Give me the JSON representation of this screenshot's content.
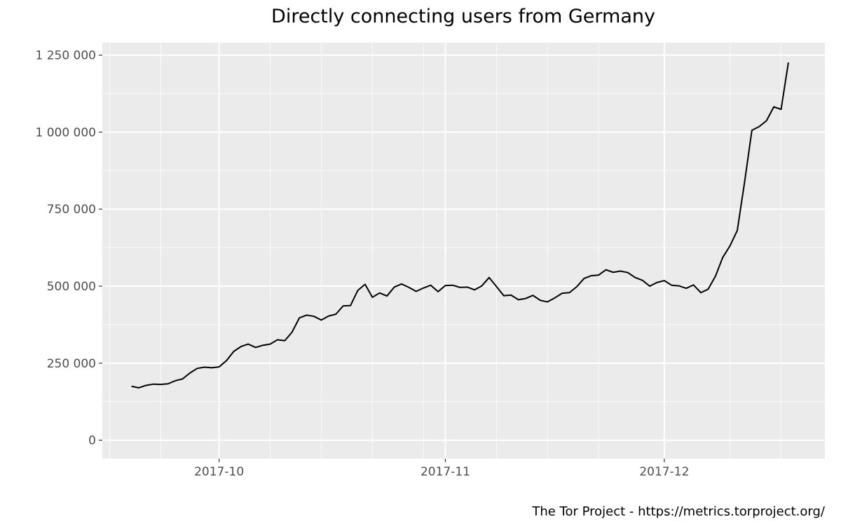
{
  "chart_data": {
    "type": "line",
    "title": "Directly connecting users from Germany",
    "caption": "The Tor Project - https://metrics.torproject.org/",
    "xlabel": "",
    "ylabel": "",
    "x_range": [
      "2017-09-15",
      "2017-12-23"
    ],
    "ylim": [
      -60000,
      1290000
    ],
    "y_ticks": [
      {
        "value": 0,
        "label": "0"
      },
      {
        "value": 250000,
        "label": "250 000"
      },
      {
        "value": 500000,
        "label": "500 000"
      },
      {
        "value": 750000,
        "label": "750 000"
      },
      {
        "value": 1000000,
        "label": "1 000 000"
      },
      {
        "value": 1250000,
        "label": "1 250 000"
      }
    ],
    "y_minor_ticks": [
      125000,
      375000,
      625000,
      875000,
      1125000
    ],
    "x_ticks": [
      {
        "value": "2017-10-01",
        "label": "2017-10"
      },
      {
        "value": "2017-11-01",
        "label": "2017-11"
      },
      {
        "value": "2017-12-01",
        "label": "2017-12"
      }
    ],
    "x_minor_ticks": [
      "2017-09-16",
      "2017-09-23",
      "2017-10-08",
      "2017-10-15",
      "2017-10-22",
      "2017-10-29",
      "2017-11-08",
      "2017-11-15",
      "2017-11-22",
      "2017-12-10",
      "2017-12-17"
    ],
    "grid": true,
    "series": [
      {
        "color": "#000000",
        "points": [
          [
            "2017-09-19",
            175000
          ],
          [
            "2017-09-20",
            170000
          ],
          [
            "2017-09-21",
            178000
          ],
          [
            "2017-09-22",
            182000
          ],
          [
            "2017-09-23",
            181000
          ],
          [
            "2017-09-24",
            183000
          ],
          [
            "2017-09-25",
            193000
          ],
          [
            "2017-09-26",
            199000
          ],
          [
            "2017-09-27",
            218000
          ],
          [
            "2017-09-28",
            233000
          ],
          [
            "2017-09-29",
            237000
          ],
          [
            "2017-09-30",
            235000
          ],
          [
            "2017-10-01",
            238000
          ],
          [
            "2017-10-02",
            258000
          ],
          [
            "2017-10-03",
            288000
          ],
          [
            "2017-10-04",
            304000
          ],
          [
            "2017-10-05",
            312000
          ],
          [
            "2017-10-06",
            301000
          ],
          [
            "2017-10-07",
            308000
          ],
          [
            "2017-10-08",
            312000
          ],
          [
            "2017-10-09",
            326000
          ],
          [
            "2017-10-10",
            323000
          ],
          [
            "2017-10-11",
            351000
          ],
          [
            "2017-10-12",
            397000
          ],
          [
            "2017-10-13",
            406000
          ],
          [
            "2017-10-14",
            402000
          ],
          [
            "2017-10-15",
            390000
          ],
          [
            "2017-10-16",
            403000
          ],
          [
            "2017-10-17",
            409000
          ],
          [
            "2017-10-18",
            436000
          ],
          [
            "2017-10-19",
            437000
          ],
          [
            "2017-10-20",
            486000
          ],
          [
            "2017-10-21",
            506000
          ],
          [
            "2017-10-22",
            464000
          ],
          [
            "2017-10-23",
            478000
          ],
          [
            "2017-10-24",
            468000
          ],
          [
            "2017-10-25",
            497000
          ],
          [
            "2017-10-26",
            507000
          ],
          [
            "2017-10-27",
            496000
          ],
          [
            "2017-10-28",
            483000
          ],
          [
            "2017-10-29",
            494000
          ],
          [
            "2017-10-30",
            503000
          ],
          [
            "2017-10-31",
            482000
          ],
          [
            "2017-11-01",
            502000
          ],
          [
            "2017-11-02",
            503000
          ],
          [
            "2017-11-03",
            496000
          ],
          [
            "2017-11-04",
            497000
          ],
          [
            "2017-11-05",
            488000
          ],
          [
            "2017-11-06",
            501000
          ],
          [
            "2017-11-07",
            528000
          ],
          [
            "2017-11-08",
            499000
          ],
          [
            "2017-11-09",
            469000
          ],
          [
            "2017-11-10",
            471000
          ],
          [
            "2017-11-11",
            456000
          ],
          [
            "2017-11-12",
            460000
          ],
          [
            "2017-11-13",
            470000
          ],
          [
            "2017-11-14",
            454000
          ],
          [
            "2017-11-15",
            449000
          ],
          [
            "2017-11-16",
            462000
          ],
          [
            "2017-11-17",
            477000
          ],
          [
            "2017-11-18",
            479000
          ],
          [
            "2017-11-19",
            498000
          ],
          [
            "2017-11-20",
            525000
          ],
          [
            "2017-11-21",
            534000
          ],
          [
            "2017-11-22",
            536000
          ],
          [
            "2017-11-23",
            553000
          ],
          [
            "2017-11-24",
            545000
          ],
          [
            "2017-11-25",
            549000
          ],
          [
            "2017-11-26",
            544000
          ],
          [
            "2017-11-27",
            528000
          ],
          [
            "2017-11-28",
            519000
          ],
          [
            "2017-11-29",
            500000
          ],
          [
            "2017-11-30",
            512000
          ],
          [
            "2017-12-01",
            518000
          ],
          [
            "2017-12-02",
            503000
          ],
          [
            "2017-12-03",
            501000
          ],
          [
            "2017-12-04",
            493000
          ],
          [
            "2017-12-05",
            504000
          ],
          [
            "2017-12-06",
            479000
          ],
          [
            "2017-12-07",
            490000
          ],
          [
            "2017-12-08",
            532000
          ],
          [
            "2017-12-09",
            593000
          ],
          [
            "2017-12-10",
            631000
          ],
          [
            "2017-12-11",
            681000
          ],
          [
            "2017-12-12",
            838000
          ],
          [
            "2017-12-13",
            1006000
          ],
          [
            "2017-12-14",
            1018000
          ],
          [
            "2017-12-15",
            1037000
          ],
          [
            "2017-12-16",
            1082000
          ],
          [
            "2017-12-17",
            1074000
          ],
          [
            "2017-12-18",
            1226000
          ]
        ]
      }
    ]
  }
}
